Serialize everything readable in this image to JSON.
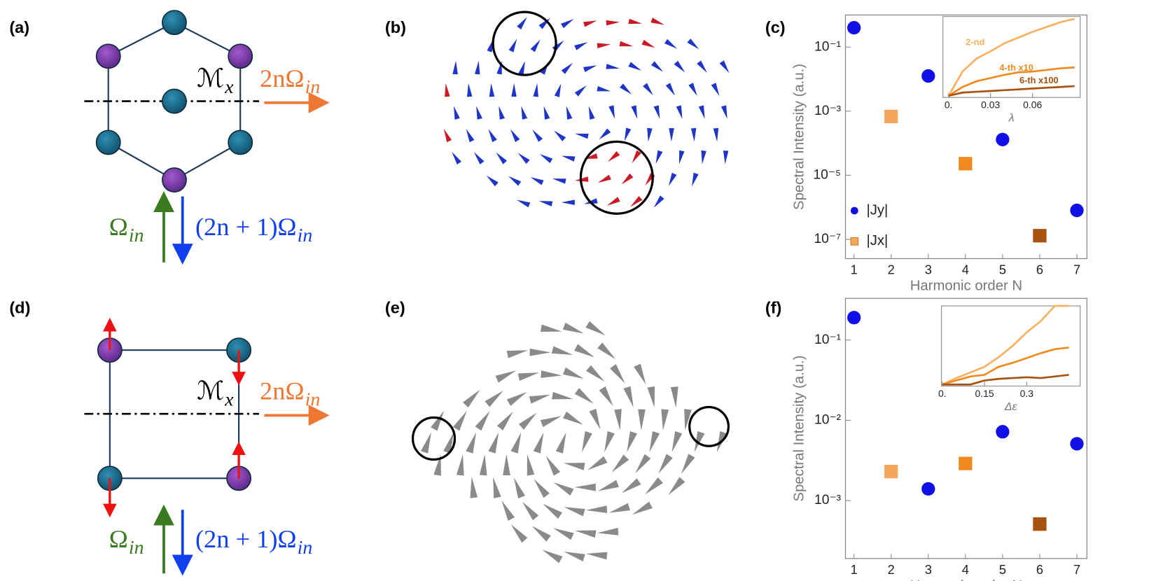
{
  "panel_labels": [
    "(a)",
    "(b)",
    "(c)",
    "(d)",
    "(e)",
    "(f)"
  ],
  "diagrams": [
    {
      "mirror": "ℳ",
      "mirror_sub": "x",
      "harmonic_even": "2nΩ",
      "harmonic_even_sub": "in",
      "input": "Ω",
      "input_sub": "in",
      "harmonic_odd": "(2n + 1)Ω",
      "harmonic_odd_sub": "in"
    },
    {
      "mirror": "ℳ",
      "mirror_sub": "x",
      "harmonic_even": "2nΩ",
      "harmonic_even_sub": "in",
      "input": "Ω",
      "input_sub": "in",
      "harmonic_odd": "(2n + 1)Ω",
      "harmonic_odd_sub": "in"
    }
  ],
  "chart_data": [
    {
      "type": "scatter",
      "xlabel": "Harmonic order N",
      "ylabel": "Spectral Intensity (a.u.)",
      "log_y": true,
      "xlim": [
        0.77,
        7.27
      ],
      "xticks": [
        1,
        2,
        3,
        4,
        5,
        6,
        7
      ],
      "ylim": [
        2.5e-08,
        1
      ],
      "yticks": [
        {
          "value": 0.1,
          "label": "10⁻¹"
        },
        {
          "value": 0.001,
          "label": "10⁻³"
        },
        {
          "value": 1e-05,
          "label": "10⁻⁵"
        },
        {
          "value": 1e-07,
          "label": "10⁻⁷"
        }
      ],
      "legend": "lower-left",
      "series": [
        {
          "name": "|Jy|",
          "marker": "circle",
          "color": "#1010e6",
          "x": [
            1,
            3,
            5,
            7
          ],
          "values": [
            0.4,
            0.0125,
            0.00013,
            8e-07
          ]
        },
        {
          "name": "|Jx|",
          "marker": "square",
          "colors": [
            "#f5a65b",
            "#f08a1e",
            "#a8520f"
          ],
          "x": [
            2,
            4,
            6
          ],
          "values": [
            0.00068,
            2.3e-05,
            1.3e-07
          ]
        }
      ]
    },
    {
      "type": "line",
      "xlabel": "λ",
      "log_y": false,
      "xlim": [
        -0.004,
        0.094
      ],
      "xticks": [
        {
          "value": 0,
          "label": "0."
        },
        0.03,
        0.06
      ],
      "ylim": [
        0,
        1
      ],
      "x": [
        0,
        0.01,
        0.02,
        0.03,
        0.04,
        0.05,
        0.06,
        0.07,
        0.08,
        0.09
      ],
      "series": [
        {
          "name": "2-nd",
          "color": "#f8b060",
          "values": [
            0.02,
            0.32,
            0.48,
            0.57,
            0.67,
            0.74,
            0.81,
            0.87,
            0.93,
            0.97
          ]
        },
        {
          "name": "4-th x10",
          "color": "#f08a1e",
          "values": [
            0.02,
            0.13,
            0.2,
            0.24,
            0.28,
            0.31,
            0.32,
            0.34,
            0.36,
            0.37
          ]
        },
        {
          "name": "6-th x100",
          "color": "#a8520f",
          "values": [
            0.02,
            0.06,
            0.07,
            0.08,
            0.09,
            0.1,
            0.11,
            0.12,
            0.13,
            0.14
          ]
        }
      ]
    },
    {
      "type": "scatter",
      "xlabel": "Harmonic order N",
      "ylabel": "Spectral Intensity (a.u.)",
      "log_y": true,
      "xlim": [
        0.77,
        7.27
      ],
      "xticks": [
        1,
        2,
        3,
        4,
        5,
        6,
        7
      ],
      "ylim": [
        0.00019,
        0.33
      ],
      "yticks": [
        {
          "value": 0.1,
          "label": "10⁻¹"
        },
        {
          "value": 0.01,
          "label": "10⁻²"
        },
        {
          "value": 0.001,
          "label": "10⁻³"
        }
      ],
      "series": [
        {
          "marker": "circle",
          "color": "#1010e6",
          "x": [
            1,
            3,
            5,
            7
          ],
          "values": [
            0.19,
            0.0014,
            0.0072,
            0.0051
          ]
        },
        {
          "marker": "square",
          "colors": [
            "#f5a65b",
            "#f08a1e",
            "#a8520f"
          ],
          "x": [
            2,
            4,
            6
          ],
          "values": [
            0.0023,
            0.0029,
            0.00051
          ]
        }
      ]
    },
    {
      "type": "line",
      "xlabel": "Δε",
      "log_y": false,
      "xlim": [
        -0.003,
        0.49
      ],
      "xticks": [
        {
          "value": 0,
          "label": "0."
        },
        0.15,
        0.3
      ],
      "ylim": [
        0,
        1
      ],
      "x": [
        0,
        0.05,
        0.1,
        0.15,
        0.2,
        0.25,
        0.3,
        0.35,
        0.4,
        0.45
      ],
      "series": [
        {
          "color": "#f8b060",
          "values": [
            0.02,
            0.1,
            0.17,
            0.24,
            0.36,
            0.5,
            0.67,
            0.81,
            1,
            1
          ]
        },
        {
          "color": "#f08a1e",
          "values": [
            0.02,
            0.07,
            0.12,
            0.14,
            0.24,
            0.29,
            0.35,
            0.41,
            0.46,
            0.48
          ]
        },
        {
          "color": "#a8520f",
          "values": [
            0.02,
            0.02,
            0.02,
            0.07,
            0.09,
            0.1,
            0.11,
            0.1,
            0.12,
            0.14
          ]
        }
      ]
    }
  ]
}
